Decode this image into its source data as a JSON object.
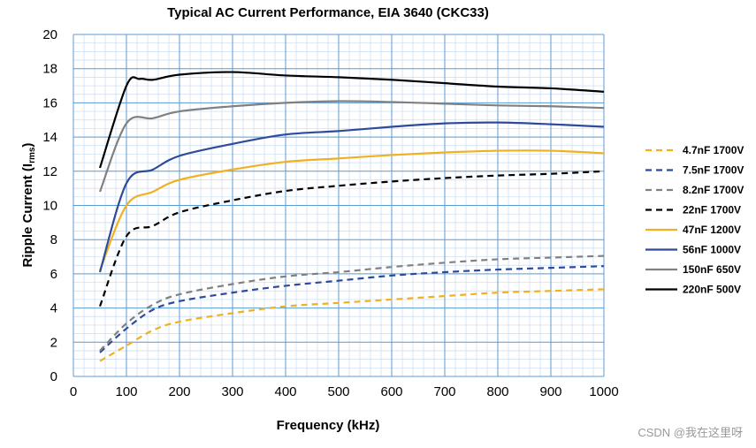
{
  "chart_data": {
    "type": "line",
    "title": "Typical AC Current Performance, EIA 3640 (CKC33)",
    "xlabel": "Frequency (kHz)",
    "ylabel_main": "Ripple Current (I",
    "ylabel_sub": "rms",
    "ylabel_close": ")",
    "xlim": [
      0,
      1000
    ],
    "ylim": [
      0,
      20
    ],
    "xticks": [
      0,
      100,
      200,
      300,
      400,
      500,
      600,
      700,
      800,
      900,
      1000
    ],
    "yticks": [
      0,
      2,
      4,
      6,
      8,
      10,
      12,
      14,
      16,
      18,
      20
    ],
    "x_minor_step": 20,
    "y_minor_step": 0.5,
    "grid": true,
    "legend_position": "right",
    "series": [
      {
        "name": "4.7nF 1700V",
        "color": "#f0b020",
        "dashed": true,
        "x": [
          50,
          100,
          150,
          200,
          300,
          400,
          500,
          600,
          700,
          800,
          900,
          1000
        ],
        "y": [
          0.9,
          1.8,
          2.7,
          3.2,
          3.7,
          4.1,
          4.3,
          4.5,
          4.7,
          4.9,
          5.0,
          5.1
        ]
      },
      {
        "name": "7.5nF 1700V",
        "color": "#2e4b9b",
        "dashed": true,
        "x": [
          50,
          100,
          150,
          200,
          300,
          400,
          500,
          600,
          700,
          800,
          900,
          1000
        ],
        "y": [
          1.4,
          2.8,
          3.9,
          4.4,
          4.9,
          5.3,
          5.6,
          5.9,
          6.1,
          6.25,
          6.35,
          6.45
        ]
      },
      {
        "name": "8.2nF 1700V",
        "color": "#808080",
        "dashed": true,
        "x": [
          50,
          100,
          150,
          200,
          300,
          400,
          500,
          600,
          700,
          800,
          900,
          1000
        ],
        "y": [
          1.5,
          3.1,
          4.2,
          4.8,
          5.4,
          5.85,
          6.1,
          6.4,
          6.65,
          6.85,
          6.95,
          7.05
        ]
      },
      {
        "name": "22nF 1700V",
        "color": "#000000",
        "dashed": true,
        "x": [
          50,
          100,
          150,
          200,
          300,
          400,
          500,
          600,
          700,
          800,
          900,
          1000
        ],
        "y": [
          4.1,
          8.2,
          8.8,
          9.6,
          10.3,
          10.85,
          11.15,
          11.4,
          11.6,
          11.75,
          11.85,
          12.0
        ]
      },
      {
        "name": "47nF 1200V",
        "color": "#f0b020",
        "dashed": false,
        "x": [
          50,
          100,
          150,
          200,
          300,
          400,
          500,
          600,
          700,
          800,
          900,
          1000
        ],
        "y": [
          6.2,
          10.0,
          10.8,
          11.5,
          12.1,
          12.55,
          12.75,
          12.95,
          13.1,
          13.2,
          13.2,
          13.05
        ]
      },
      {
        "name": "56nF 1000V",
        "color": "#2e4b9b",
        "dashed": false,
        "x": [
          50,
          100,
          150,
          200,
          300,
          400,
          500,
          600,
          700,
          800,
          900,
          1000
        ],
        "y": [
          6.1,
          11.3,
          12.1,
          12.9,
          13.6,
          14.15,
          14.35,
          14.6,
          14.8,
          14.85,
          14.75,
          14.6
        ]
      },
      {
        "name": "150nF 650V",
        "color": "#808080",
        "dashed": false,
        "x": [
          50,
          100,
          150,
          200,
          300,
          400,
          500,
          600,
          700,
          800,
          900,
          1000
        ],
        "y": [
          10.8,
          14.8,
          15.1,
          15.5,
          15.8,
          16.0,
          16.1,
          16.05,
          15.95,
          15.85,
          15.8,
          15.7
        ]
      },
      {
        "name": "220nF 500V",
        "color": "#000000",
        "dashed": false,
        "x": [
          50,
          100,
          125,
          150,
          200,
          300,
          400,
          500,
          600,
          700,
          800,
          900,
          1000
        ],
        "y": [
          12.2,
          17.0,
          17.4,
          17.35,
          17.65,
          17.8,
          17.6,
          17.5,
          17.35,
          17.15,
          16.95,
          16.85,
          16.65
        ]
      }
    ]
  },
  "watermark": "CSDN @我在这里呀"
}
